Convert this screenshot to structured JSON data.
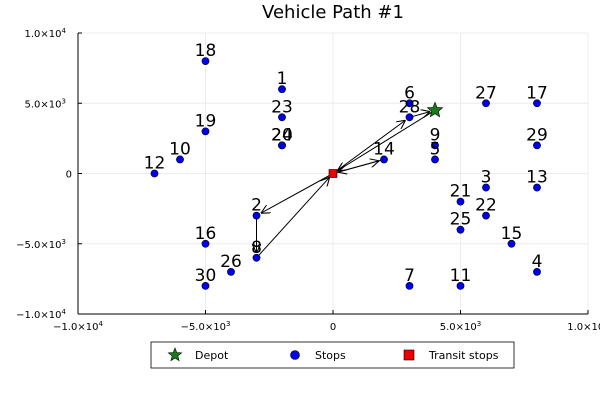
{
  "chart_data": {
    "type": "scatter",
    "title": "Vehicle Path #1",
    "xlabel": "",
    "ylabel": "",
    "xlim": [
      -10000,
      10000
    ],
    "ylim": [
      -10000,
      10000
    ],
    "grid": true,
    "legend_position": "bottom",
    "x_ticks": [
      {
        "value": -10000,
        "mant": "−1.0×10",
        "exp": "4"
      },
      {
        "value": -5000,
        "mant": "−5.0×10",
        "exp": "3"
      },
      {
        "value": 0,
        "mant": "0",
        "exp": ""
      },
      {
        "value": 5000,
        "mant": "5.0×10",
        "exp": "3"
      },
      {
        "value": 10000,
        "mant": "1.0×10",
        "exp": "4"
      }
    ],
    "y_ticks": [
      {
        "value": 10000,
        "mant": "1.0×10",
        "exp": "4"
      },
      {
        "value": 5000,
        "mant": "5.0×10",
        "exp": "3"
      },
      {
        "value": 0,
        "mant": "0",
        "exp": ""
      },
      {
        "value": -5000,
        "mant": "−5.0×10",
        "exp": "3"
      },
      {
        "value": -10000,
        "mant": "−1.0×10",
        "exp": "4"
      }
    ],
    "legend": [
      {
        "label": "Depot",
        "marker": "star",
        "color": "#1a7a1a"
      },
      {
        "label": "Stops",
        "marker": "circle",
        "color": "#0000ee"
      },
      {
        "label": "Transit stops",
        "marker": "square",
        "color": "#ee0000"
      }
    ],
    "depot": {
      "x": 4000,
      "y": 4500
    },
    "transit_stops": [
      {
        "x": 0,
        "y": 0
      }
    ],
    "stops": [
      {
        "label": "1",
        "x": -2000,
        "y": 6000
      },
      {
        "label": "2",
        "x": -3000,
        "y": -3000
      },
      {
        "label": "3",
        "x": 6000,
        "y": -1000
      },
      {
        "label": "4",
        "x": 8000,
        "y": -7000
      },
      {
        "label": "5",
        "x": 4000,
        "y": 1000
      },
      {
        "label": "6",
        "x": 3000,
        "y": 5000
      },
      {
        "label": "7",
        "x": 3000,
        "y": -8000
      },
      {
        "label": "8",
        "x": -3000,
        "y": -6000
      },
      {
        "label": "9",
        "x": 4000,
        "y": 2000
      },
      {
        "label": "10",
        "x": -6000,
        "y": 1000
      },
      {
        "label": "11",
        "x": 5000,
        "y": -8000
      },
      {
        "label": "12",
        "x": -7000,
        "y": 0
      },
      {
        "label": "13",
        "x": 8000,
        "y": -1000
      },
      {
        "label": "14",
        "x": 2000,
        "y": 1000
      },
      {
        "label": "15",
        "x": 7000,
        "y": -5000
      },
      {
        "label": "16",
        "x": -5000,
        "y": -5000
      },
      {
        "label": "17",
        "x": 8000,
        "y": 5000
      },
      {
        "label": "18",
        "x": -5000,
        "y": 8000
      },
      {
        "label": "19",
        "x": -5000,
        "y": 3000
      },
      {
        "label": "20",
        "x": -2000,
        "y": 2000
      },
      {
        "label": "21",
        "x": 5000,
        "y": -2000
      },
      {
        "label": "22",
        "x": 6000,
        "y": -3000
      },
      {
        "label": "23",
        "x": -2000,
        "y": 4000
      },
      {
        "label": "24",
        "x": -2000,
        "y": 2000
      },
      {
        "label": "25",
        "x": 5000,
        "y": -4000
      },
      {
        "label": "26",
        "x": -4000,
        "y": -7000
      },
      {
        "label": "27",
        "x": 6000,
        "y": 5000
      },
      {
        "label": "28",
        "x": 3000,
        "y": 4000
      },
      {
        "label": "29",
        "x": 8000,
        "y": 2000
      },
      {
        "label": "30",
        "x": -5000,
        "y": -8000
      }
    ],
    "route": [
      {
        "x": 4000,
        "y": 4500
      },
      {
        "x": 0,
        "y": 0
      },
      {
        "x": -3000,
        "y": -3000
      },
      {
        "x": -3000,
        "y": -6000
      },
      {
        "x": 0,
        "y": 0
      },
      {
        "x": 2000,
        "y": 1000
      },
      {
        "x": 0,
        "y": 0
      },
      {
        "x": 3000,
        "y": 4000
      },
      {
        "x": 4000,
        "y": 4500
      }
    ],
    "colors": {
      "stop": "#0000ee",
      "depot": "#1a7a1a",
      "transit": "#ee0000",
      "route": "#000000",
      "grid": "#ececec",
      "axis": "#000000"
    }
  }
}
